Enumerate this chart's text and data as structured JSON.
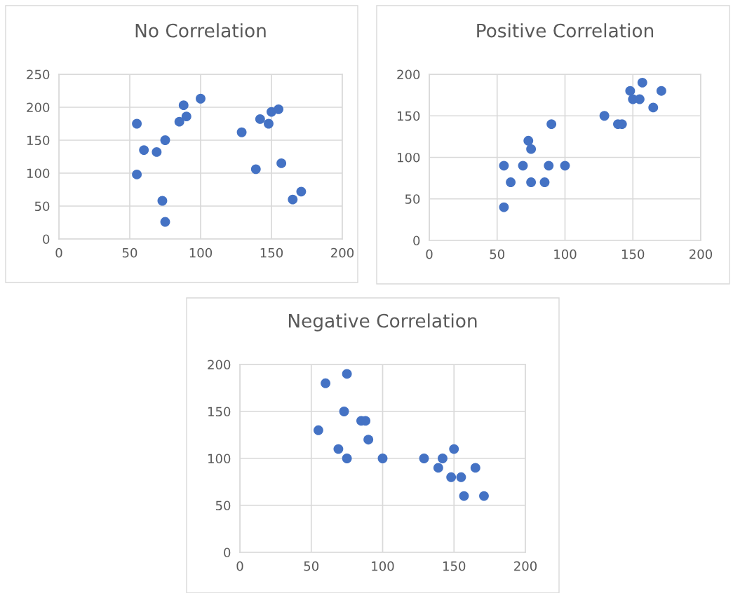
{
  "chart_data": [
    {
      "type": "scatter",
      "title": "No Correlation",
      "marker": "circle",
      "grid": true,
      "xlim": [
        0,
        200
      ],
      "xticks": [
        0,
        50,
        100,
        150,
        200
      ],
      "ylim": [
        0,
        250
      ],
      "yticks": [
        0,
        50,
        100,
        150,
        200,
        250
      ],
      "series": [
        {
          "color": "#4472c4",
          "x": [
            55,
            55,
            60,
            69,
            75,
            73,
            75,
            85,
            88,
            90,
            100,
            129,
            139,
            142,
            148,
            150,
            155,
            157,
            165,
            171
          ],
          "values": [
            175,
            98,
            135,
            132,
            150,
            58,
            26,
            178,
            203,
            186,
            213,
            162,
            106,
            182,
            175,
            193,
            197,
            115,
            60,
            72
          ]
        }
      ]
    },
    {
      "type": "scatter",
      "title": "Positive Correlation",
      "marker": "circle",
      "grid": true,
      "xlim": [
        0,
        200
      ],
      "xticks": [
        0,
        50,
        100,
        150,
        200
      ],
      "ylim": [
        0,
        200
      ],
      "yticks": [
        0,
        50,
        100,
        150,
        200
      ],
      "series": [
        {
          "color": "#4472c4",
          "x": [
            55,
            55,
            60,
            69,
            73,
            75,
            75,
            85,
            88,
            90,
            100,
            129,
            139,
            142,
            148,
            150,
            155,
            157,
            165,
            171
          ],
          "values": [
            40,
            90,
            70,
            90,
            120,
            110,
            70,
            70,
            90,
            140,
            90,
            150,
            140,
            140,
            180,
            170,
            170,
            190,
            160,
            180
          ]
        }
      ]
    },
    {
      "type": "scatter",
      "title": "Negative Correlation",
      "marker": "circle",
      "grid": true,
      "xlim": [
        0,
        200
      ],
      "xticks": [
        0,
        50,
        100,
        150,
        200
      ],
      "ylim": [
        0,
        200
      ],
      "yticks": [
        0,
        50,
        100,
        150,
        200
      ],
      "series": [
        {
          "color": "#4472c4",
          "x": [
            55,
            60,
            69,
            73,
            75,
            75,
            85,
            88,
            90,
            100,
            129,
            139,
            142,
            150,
            148,
            155,
            157,
            165,
            171
          ],
          "values": [
            130,
            180,
            110,
            150,
            190,
            100,
            140,
            140,
            120,
            100,
            100,
            90,
            100,
            110,
            80,
            80,
            60,
            90,
            60
          ]
        }
      ]
    }
  ]
}
